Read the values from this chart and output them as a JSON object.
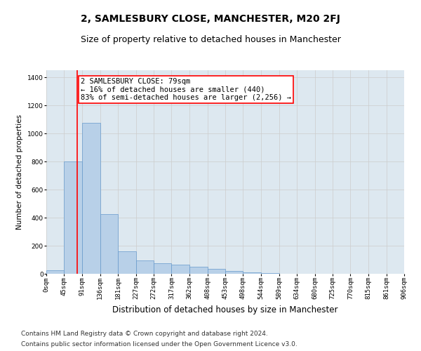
{
  "title": "2, SAMLESBURY CLOSE, MANCHESTER, M20 2FJ",
  "subtitle": "Size of property relative to detached houses in Manchester",
  "xlabel": "Distribution of detached houses by size in Manchester",
  "ylabel": "Number of detached properties",
  "bin_edges": [
    0,
    45,
    91,
    136,
    181,
    227,
    272,
    317,
    362,
    408,
    453,
    498,
    544,
    589,
    634,
    680,
    725,
    770,
    815,
    861,
    906
  ],
  "bin_labels": [
    "0sqm",
    "45sqm",
    "91sqm",
    "136sqm",
    "181sqm",
    "227sqm",
    "272sqm",
    "317sqm",
    "362sqm",
    "408sqm",
    "453sqm",
    "498sqm",
    "544sqm",
    "589sqm",
    "634sqm",
    "680sqm",
    "725sqm",
    "770sqm",
    "815sqm",
    "861sqm",
    "906sqm"
  ],
  "bar_heights": [
    25,
    800,
    1075,
    425,
    160,
    95,
    75,
    65,
    50,
    35,
    20,
    10,
    5,
    2,
    1,
    1,
    0,
    0,
    0,
    0
  ],
  "bar_color": "#b8d0e8",
  "bar_edge_color": "#6699cc",
  "vline_x": 79,
  "vline_color": "red",
  "annotation_text": "2 SAMLESBURY CLOSE: 79sqm\n← 16% of detached houses are smaller (440)\n83% of semi-detached houses are larger (2,256) →",
  "annotation_box_color": "white",
  "annotation_box_edge_color": "red",
  "ylim": [
    0,
    1450
  ],
  "yticks": [
    0,
    200,
    400,
    600,
    800,
    1000,
    1200,
    1400
  ],
  "grid_color": "#cccccc",
  "bg_color": "#dde8f0",
  "footer_line1": "Contains HM Land Registry data © Crown copyright and database right 2024.",
  "footer_line2": "Contains public sector information licensed under the Open Government Licence v3.0.",
  "title_fontsize": 10,
  "subtitle_fontsize": 9,
  "xlabel_fontsize": 8.5,
  "ylabel_fontsize": 7.5,
  "tick_fontsize": 6.5,
  "annotation_fontsize": 7.5,
  "footer_fontsize": 6.5
}
